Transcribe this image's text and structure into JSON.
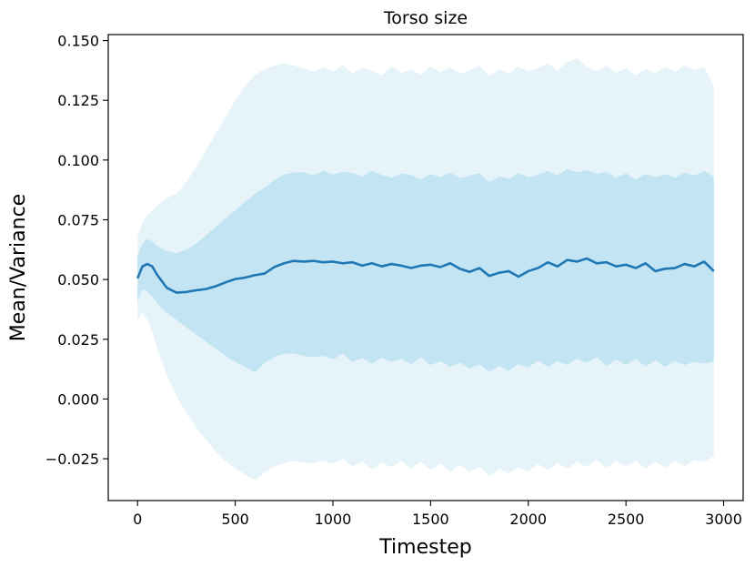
{
  "chart_data": {
    "type": "line",
    "title": "Torso size",
    "xlabel": "Timestep",
    "ylabel": "Mean/Variance",
    "xlim": [
      -150,
      3100
    ],
    "ylim": [
      -0.0425,
      0.1525
    ],
    "xticks": [
      0,
      500,
      1000,
      1500,
      2000,
      2500,
      3000
    ],
    "xtick_labels": [
      "0",
      "500",
      "1000",
      "1500",
      "2000",
      "2500",
      "3000"
    ],
    "yticks": [
      -0.025,
      0.0,
      0.025,
      0.05,
      0.075,
      0.1,
      0.125,
      0.15
    ],
    "ytick_labels": [
      "−0.025",
      "0.000",
      "0.025",
      "0.050",
      "0.075",
      "0.100",
      "0.125",
      "0.150"
    ],
    "grid": false,
    "legend": "none",
    "colors": {
      "mean_line": "#1f77b4",
      "inner_band": "#c3e5f3",
      "outer_band": "#e6f4fa"
    },
    "x": [
      0,
      25,
      50,
      75,
      100,
      150,
      200,
      250,
      300,
      350,
      400,
      450,
      500,
      550,
      600,
      650,
      700,
      750,
      800,
      850,
      900,
      950,
      1000,
      1050,
      1100,
      1150,
      1200,
      1250,
      1300,
      1350,
      1400,
      1450,
      1500,
      1550,
      1600,
      1650,
      1700,
      1750,
      1800,
      1850,
      1900,
      1950,
      2000,
      2050,
      2100,
      2150,
      2200,
      2250,
      2300,
      2350,
      2400,
      2450,
      2500,
      2550,
      2600,
      2650,
      2700,
      2750,
      2800,
      2850,
      2900,
      2950
    ],
    "series": [
      {
        "role": "mean",
        "values": [
          0.0505,
          0.0555,
          0.0565,
          0.0555,
          0.052,
          0.0465,
          0.0445,
          0.0448,
          0.0455,
          0.046,
          0.0472,
          0.0488,
          0.0502,
          0.0508,
          0.0518,
          0.0525,
          0.0552,
          0.0568,
          0.0578,
          0.0575,
          0.0578,
          0.0572,
          0.0575,
          0.0568,
          0.0572,
          0.0558,
          0.0568,
          0.0555,
          0.0565,
          0.0558,
          0.0548,
          0.0558,
          0.0562,
          0.0552,
          0.0568,
          0.0545,
          0.0532,
          0.0548,
          0.0515,
          0.0528,
          0.0535,
          0.0512,
          0.0535,
          0.0548,
          0.0572,
          0.0555,
          0.0582,
          0.0575,
          0.0588,
          0.0568,
          0.0572,
          0.0555,
          0.0562,
          0.0548,
          0.0568,
          0.0535,
          0.0545,
          0.0548,
          0.0565,
          0.0555,
          0.0575,
          0.0535
        ]
      },
      {
        "role": "band-1sd",
        "lower": [
          0.041,
          0.046,
          0.045,
          0.043,
          0.04,
          0.036,
          0.033,
          0.03,
          0.027,
          0.024,
          0.021,
          0.018,
          0.0155,
          0.0135,
          0.011,
          0.015,
          0.0175,
          0.019,
          0.019,
          0.018,
          0.0175,
          0.018,
          0.0165,
          0.019,
          0.0155,
          0.0172,
          0.0148,
          0.0172,
          0.0155,
          0.0168,
          0.0145,
          0.0175,
          0.0142,
          0.0158,
          0.0135,
          0.0152,
          0.0128,
          0.0145,
          0.0112,
          0.0138,
          0.0118,
          0.0145,
          0.0132,
          0.016,
          0.0135,
          0.0158,
          0.0142,
          0.0168,
          0.0152,
          0.0175,
          0.0138,
          0.0165,
          0.0142,
          0.0168,
          0.0135,
          0.0162,
          0.0135,
          0.0158,
          0.0142,
          0.0155,
          0.0148,
          0.0155
        ],
        "upper": [
          0.06,
          0.065,
          0.067,
          0.066,
          0.064,
          0.062,
          0.061,
          0.0625,
          0.065,
          0.0685,
          0.072,
          0.0755,
          0.079,
          0.0825,
          0.0858,
          0.0885,
          0.0915,
          0.094,
          0.0948,
          0.095,
          0.0935,
          0.0955,
          0.094,
          0.0952,
          0.0945,
          0.0932,
          0.0955,
          0.0938,
          0.0925,
          0.0945,
          0.0938,
          0.0918,
          0.0942,
          0.0928,
          0.0948,
          0.0925,
          0.0935,
          0.0945,
          0.0908,
          0.0932,
          0.0922,
          0.0945,
          0.0928,
          0.0938,
          0.0955,
          0.0935,
          0.0962,
          0.0948,
          0.0958,
          0.0942,
          0.095,
          0.0925,
          0.0945,
          0.0918,
          0.0942,
          0.0928,
          0.0942,
          0.0925,
          0.0948,
          0.0935,
          0.0955,
          0.093
        ]
      },
      {
        "role": "band-2sd",
        "lower": [
          0.033,
          0.036,
          0.033,
          0.028,
          0.021,
          0.01,
          0.001,
          -0.006,
          -0.012,
          -0.017,
          -0.022,
          -0.026,
          -0.029,
          -0.0315,
          -0.034,
          -0.031,
          -0.028,
          -0.027,
          -0.026,
          -0.0265,
          -0.027,
          -0.026,
          -0.027,
          -0.025,
          -0.0282,
          -0.0262,
          -0.0295,
          -0.0268,
          -0.0285,
          -0.0258,
          -0.0292,
          -0.0262,
          -0.0298,
          -0.027,
          -0.0305,
          -0.0275,
          -0.0308,
          -0.0282,
          -0.0325,
          -0.0292,
          -0.0312,
          -0.0285,
          -0.0305,
          -0.0272,
          -0.0298,
          -0.0268,
          -0.0292,
          -0.0262,
          -0.0285,
          -0.0255,
          -0.0288,
          -0.026,
          -0.0285,
          -0.0258,
          -0.0292,
          -0.0262,
          -0.0288,
          -0.0258,
          -0.0282,
          -0.0255,
          -0.0262,
          -0.024
        ],
        "upper": [
          0.068,
          0.074,
          0.077,
          0.079,
          0.081,
          0.084,
          0.086,
          0.091,
          0.097,
          0.104,
          0.111,
          0.118,
          0.125,
          0.131,
          0.1355,
          0.138,
          0.1395,
          0.1405,
          0.1395,
          0.1385,
          0.137,
          0.139,
          0.137,
          0.1398,
          0.1362,
          0.1388,
          0.1375,
          0.1355,
          0.1392,
          0.1365,
          0.1378,
          0.1358,
          0.1392,
          0.1368,
          0.1388,
          0.1362,
          0.1375,
          0.1395,
          0.1352,
          0.1378,
          0.1362,
          0.1392,
          0.137,
          0.1385,
          0.1405,
          0.1375,
          0.1412,
          0.1425,
          0.1388,
          0.1372,
          0.1395,
          0.1365,
          0.1385,
          0.1355,
          0.1382,
          0.1362,
          0.1392,
          0.1368,
          0.1398,
          0.1375,
          0.1392,
          0.1305
        ]
      }
    ]
  }
}
